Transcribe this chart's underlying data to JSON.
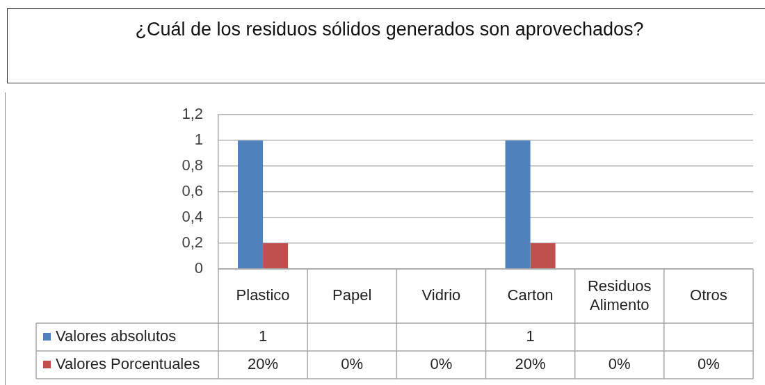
{
  "chart_data": {
    "type": "bar",
    "title": "¿Cuál de los residuos sólidos generados son aprovechados?",
    "categories": [
      "Plastico",
      "Papel",
      "Vidrio",
      "Carton",
      "Residuos Alimento",
      "Otros"
    ],
    "series": [
      {
        "name": "Valores absolutos",
        "color": "#4f81bd",
        "values": [
          1,
          null,
          null,
          1,
          null,
          null
        ],
        "value_labels": [
          "1",
          null,
          null,
          "1",
          null,
          null
        ]
      },
      {
        "name": "Valores Porcentuales",
        "color": "#c0504d",
        "values": [
          0.2,
          0,
          0,
          0.2,
          0,
          0
        ],
        "value_labels": [
          "20%",
          "0%",
          "0%",
          "20%",
          "0%",
          "0%"
        ]
      }
    ],
    "ylim": [
      0,
      1.2
    ],
    "yticks": [
      0,
      {
        "value": 0.2,
        "label": "0,2"
      },
      {
        "value": 0.4,
        "label": "0,4"
      },
      {
        "value": 0.6,
        "label": "0,6"
      },
      {
        "value": 0.8,
        "label": "0,8"
      },
      1,
      {
        "value": 1.2,
        "label": "1,2"
      }
    ],
    "grid": "y",
    "legend": "bottom"
  }
}
